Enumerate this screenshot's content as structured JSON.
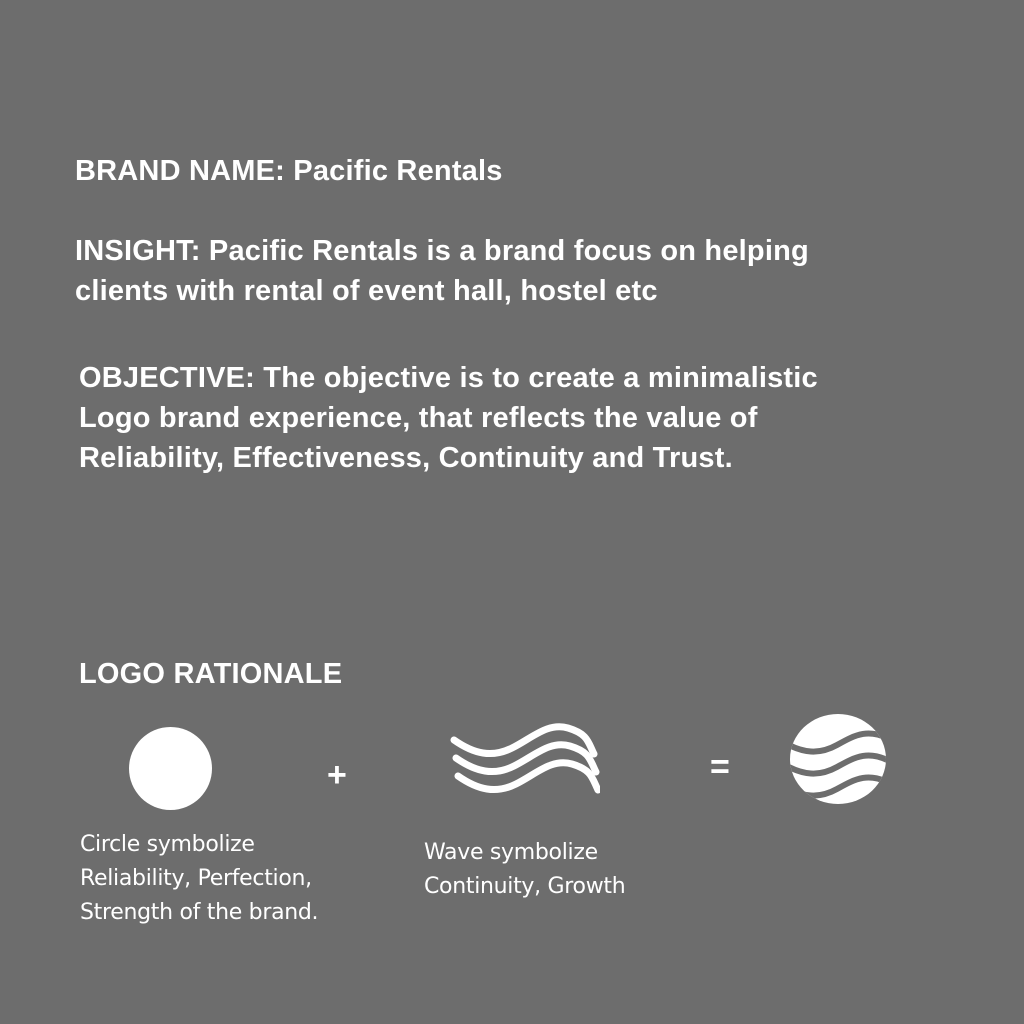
{
  "brand": {
    "label": "BRAND NAME: Pacific Rentals"
  },
  "insight": {
    "lines": [
      "INSIGHT: Pacific Rentals is a brand focus on helping",
      "clients with rental of event hall, hostel etc"
    ]
  },
  "objective": {
    "lines": [
      "OBJECTIVE: The objective is to create a minimalistic",
      "Logo brand experience, that reflects the value of",
      "Reliability, Effectiveness, Continuity and Trust."
    ]
  },
  "rationale": {
    "heading": "LOGO RATIONALE",
    "plus_symbol": "+",
    "equals_symbol": "=",
    "circle": {
      "icon": "circle-icon",
      "caption_lines": [
        "Circle symbolize",
        "Reliability, Perfection,",
        "Strength of the brand."
      ]
    },
    "wave": {
      "icon": "wave-icon",
      "caption_lines": [
        "Wave symbolize",
        "Continuity, Growth"
      ]
    },
    "result": {
      "icon": "striped-globe-logo-icon"
    }
  },
  "colors": {
    "background": "#6d6d6d",
    "foreground": "#ffffff"
  }
}
